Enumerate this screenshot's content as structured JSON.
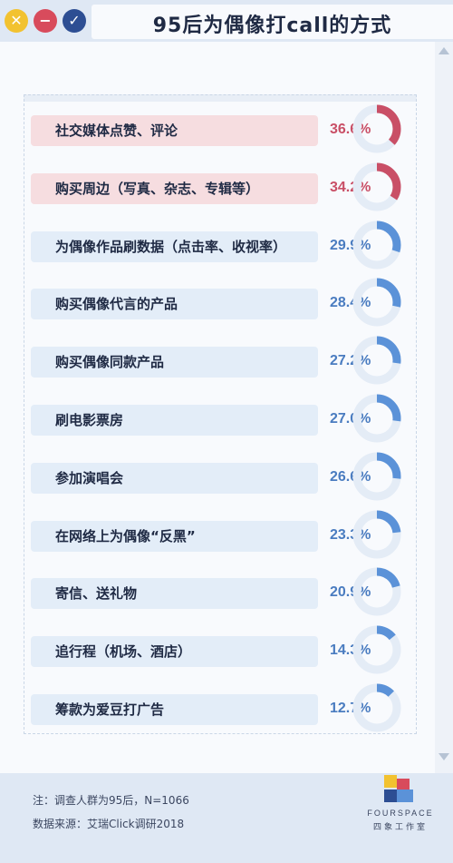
{
  "window": {
    "title": "95后为偶像打call的方式",
    "buttons": [
      {
        "name": "close",
        "icon": "close-icon",
        "glyph": "✕",
        "color": "#f2c230"
      },
      {
        "name": "minimize",
        "icon": "minus-icon",
        "glyph": "−",
        "color": "#d84b5c"
      },
      {
        "name": "confirm",
        "icon": "check-icon",
        "glyph": "✓",
        "color": "#2d4e93"
      }
    ]
  },
  "chart_data": {
    "type": "bar",
    "title": "95后为偶像打call的方式",
    "value_format": "percent",
    "categories": [
      "社交媒体点赞、评论",
      "购买周边（写真、杂志、专辑等）",
      "为偶像作品刷数据（点击率、收视率）",
      "购买偶像代言的产品",
      "购买偶像同款产品",
      "刷电影票房",
      "参加演唱会",
      "在网络上为偶像“反黑”",
      "寄信、送礼物",
      "追行程（机场、酒店）",
      "筹款为爱豆打广告"
    ],
    "values": [
      36.6,
      34.2,
      29.9,
      28.4,
      27.2,
      27.0,
      26.6,
      23.3,
      20.9,
      14.3,
      12.7
    ],
    "value_labels": [
      "36.6%",
      "34.2%",
      "29.9%",
      "28.4%",
      "27.2%",
      "27.0%",
      "26.6%",
      "23.3%",
      "20.9%",
      "14.3%",
      "12.7%"
    ],
    "highlight_count": 2,
    "colors": {
      "highlight_bar": "#f6dde0",
      "highlight_value": "#c94f66",
      "highlight_ring": "#c94f66",
      "normal_bar": "#e3edf8",
      "normal_value": "#4a7cc0",
      "normal_ring": "#5b92d8",
      "ring_track": "#e4ecf6"
    }
  },
  "footer": {
    "note": "注：调查人群为95后，N=1066",
    "source": "数据来源：艾瑞Click调研2018",
    "brand": "FOURSPACE",
    "brand_cn": "四象工作室"
  }
}
